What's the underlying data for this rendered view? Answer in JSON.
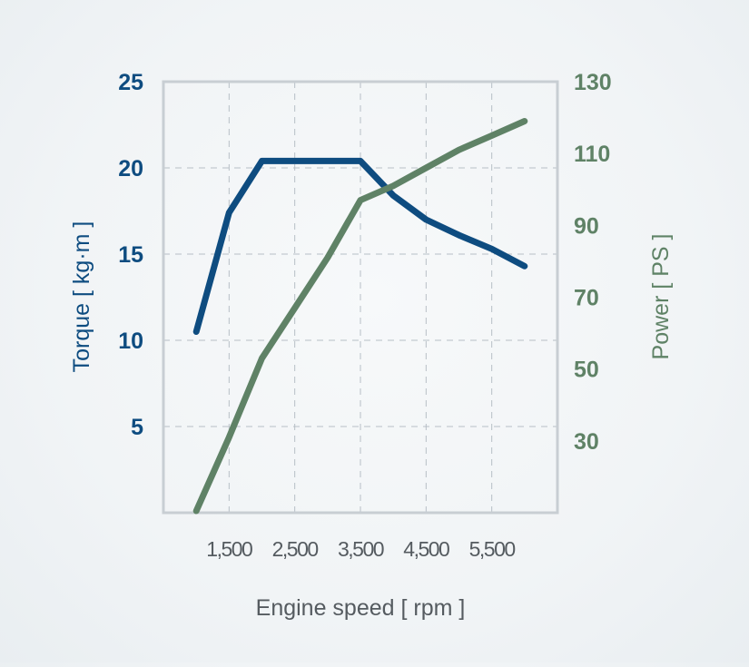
{
  "colors": {
    "torque": "#0e4c80",
    "power": "#5f8266",
    "axis": "#c8ced3",
    "grid": "#b7bfc6",
    "xlabel": "#555b60"
  },
  "chart_data": {
    "type": "line",
    "title": "",
    "xlabel": "Engine speed [ rpm ]",
    "xlim": [
      500,
      6500
    ],
    "xticks": [
      1500,
      2500,
      3500,
      4500,
      5500
    ],
    "xtick_labels": [
      "1,500",
      "2,500",
      "3,500",
      "4,500",
      "5,500"
    ],
    "y_left": {
      "label": "Torque [ kg·m ]",
      "lim": [
        0,
        25
      ],
      "ticks": [
        5,
        10,
        15,
        20,
        25
      ],
      "tick_labels": [
        "5",
        "10",
        "15",
        "20",
        "25"
      ]
    },
    "y_right": {
      "label": "Power [ PS ]",
      "lim": [
        10,
        130
      ],
      "ticks": [
        30,
        50,
        70,
        90,
        110,
        130
      ],
      "tick_labels": [
        "30",
        "50",
        "70",
        "90",
        "110",
        "130"
      ]
    },
    "grid": true,
    "series": [
      {
        "key": "torque",
        "axis": "left",
        "x": [
          1000,
          1500,
          2000,
          2500,
          3000,
          3500,
          4000,
          4500,
          5000,
          5500,
          6000
        ],
        "values": [
          10.5,
          17.4,
          20.4,
          20.4,
          20.4,
          20.4,
          18.4,
          17.0,
          16.1,
          15.3,
          14.3
        ]
      },
      {
        "key": "power",
        "axis": "right",
        "x": [
          1000,
          1500,
          2000,
          2500,
          3000,
          3500,
          4000,
          4500,
          5000,
          5500,
          6000
        ],
        "values": [
          10.5,
          31,
          53,
          67,
          81,
          97,
          101,
          106,
          111,
          115,
          119
        ]
      }
    ]
  }
}
